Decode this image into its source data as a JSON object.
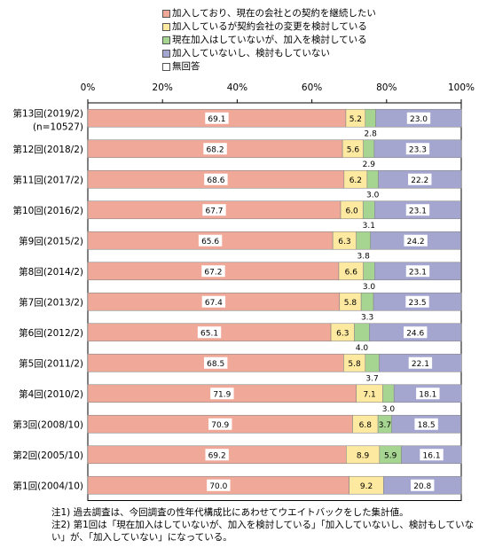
{
  "chart_data": {
    "type": "bar",
    "orientation": "horizontal",
    "stacked": true,
    "xlim": [
      0,
      100
    ],
    "x_ticks": [
      "0%",
      "20%",
      "40%",
      "60%",
      "80%",
      "100%"
    ],
    "legend_position": "top-right",
    "categories": [
      "第13回(2019/2)(n=10527)",
      "第12回(2018/2)",
      "第11回(2017/2)",
      "第10回(2016/2)",
      "第9回(2015/2)",
      "第8回(2014/2)",
      "第7回(2013/2)",
      "第6回(2012/2)",
      "第5回(2011/2)",
      "第4回(2010/2)",
      "第3回(2008/10)",
      "第2回(2005/10)",
      "第1回(2004/10)"
    ],
    "category_lines": [
      [
        "第13回(2019/2)",
        "(n=10527)"
      ],
      [
        "第12回(2018/2)"
      ],
      [
        "第11回(2017/2)"
      ],
      [
        "第10回(2016/2)"
      ],
      [
        "第9回(2015/2)"
      ],
      [
        "第8回(2014/2)"
      ],
      [
        "第7回(2013/2)"
      ],
      [
        "第6回(2012/2)"
      ],
      [
        "第5回(2011/2)"
      ],
      [
        "第4回(2010/2)"
      ],
      [
        "第3回(2008/10)"
      ],
      [
        "第2回(2005/10)"
      ],
      [
        "第1回(2004/10)"
      ]
    ],
    "series": [
      {
        "name": "加入しており、現在の会社との契約を継続したい",
        "color": "#f0a898",
        "values": [
          69.1,
          68.2,
          68.6,
          67.7,
          65.6,
          67.2,
          67.4,
          65.1,
          68.5,
          71.9,
          70.9,
          69.2,
          70.0
        ]
      },
      {
        "name": "加入しているが契約会社の変更を検討している",
        "color": "#fde9a0",
        "values": [
          5.2,
          5.6,
          6.2,
          6.0,
          6.3,
          6.6,
          5.8,
          6.3,
          5.8,
          7.1,
          6.8,
          8.9,
          9.2
        ]
      },
      {
        "name": "現在加入はしていないが、加入を検討している",
        "color": "#a6d592",
        "values": [
          2.8,
          2.9,
          3.0,
          3.1,
          3.8,
          3.0,
          3.3,
          4.0,
          3.7,
          3.0,
          3.7,
          5.9,
          null
        ]
      },
      {
        "name": "加入していないし、検討もしていない",
        "color": "#a4a6d0",
        "values": [
          23.0,
          23.3,
          22.2,
          23.1,
          24.2,
          23.1,
          23.5,
          24.6,
          22.1,
          18.1,
          18.5,
          16.1,
          20.8
        ]
      },
      {
        "name": "無回答",
        "color": "#ffffff",
        "values": [
          null,
          null,
          null,
          null,
          null,
          null,
          null,
          null,
          null,
          null,
          null,
          null,
          null
        ]
      }
    ],
    "value_labels": [
      [
        "69.1",
        "5.2",
        "2.8",
        "23.0"
      ],
      [
        "68.2",
        "5.6",
        "2.9",
        "23.3"
      ],
      [
        "68.6",
        "6.2",
        "3.0",
        "22.2"
      ],
      [
        "67.7",
        "6.0",
        "3.1",
        "23.1"
      ],
      [
        "65.6",
        "6.3",
        "3.8",
        "24.2"
      ],
      [
        "67.2",
        "6.6",
        "3.0",
        "23.1"
      ],
      [
        "67.4",
        "5.8",
        "3.3",
        "23.5"
      ],
      [
        "65.1",
        "6.3",
        "4.0",
        "24.6"
      ],
      [
        "68.5",
        "5.8",
        "3.7",
        "22.1"
      ],
      [
        "71.9",
        "7.1",
        "3.0",
        "18.1"
      ],
      [
        "70.9",
        "6.8",
        "3.7",
        "18.5"
      ],
      [
        "69.2",
        "8.9",
        "5.9",
        "16.1"
      ],
      [
        "70.0",
        "9.2",
        "",
        "20.8"
      ]
    ],
    "third_label_below": [
      true,
      true,
      true,
      true,
      true,
      true,
      true,
      true,
      true,
      true,
      false,
      false,
      false
    ]
  },
  "notes": [
    "注1) 過去調査は、今回調査の性年代構成比にあわせてウエイトバックをした集計値。",
    "注2) 第1回は「現在加入はしていないが、加入を検討している」「加入していないし、検討もしていな",
    "い」が、「加入していない」になっている。"
  ]
}
